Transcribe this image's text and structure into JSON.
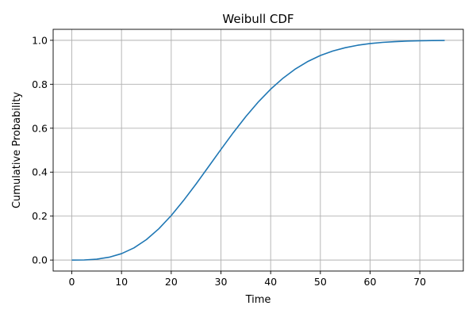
{
  "chart_data": {
    "type": "line",
    "title": "Weibull CDF",
    "xlabel": "Time",
    "ylabel": "Cumulative Probability",
    "xlim": [
      -3.75,
      78.75
    ],
    "ylim": [
      -0.05,
      1.05
    ],
    "xticks": [
      0,
      10,
      20,
      30,
      40,
      50,
      60,
      70
    ],
    "xtick_labels": [
      "0",
      "10",
      "20",
      "30",
      "40",
      "50",
      "60",
      "70"
    ],
    "yticks": [
      0.0,
      0.2,
      0.4,
      0.6,
      0.8,
      1.0
    ],
    "ytick_labels": [
      "0.0",
      "0.2",
      "0.4",
      "0.6",
      "0.8",
      "1.0"
    ],
    "grid": true,
    "series": [
      {
        "color": "#1f77b4",
        "x": [
          0,
          2.5,
          5,
          7.5,
          10,
          12.5,
          15,
          17.5,
          20,
          22.5,
          25,
          27.5,
          30,
          32.5,
          35,
          37.5,
          40,
          42.5,
          45,
          47.5,
          50,
          52.5,
          55,
          57.5,
          60,
          62.5,
          65,
          67.5,
          70,
          72.5,
          75
        ],
        "y": [
          0.0,
          0.0005,
          0.004,
          0.0128,
          0.0291,
          0.0552,
          0.0929,
          0.1423,
          0.2025,
          0.2717,
          0.3462,
          0.4247,
          0.5034,
          0.5804,
          0.6529,
          0.7191,
          0.7776,
          0.8279,
          0.87,
          0.904,
          0.9309,
          0.9512,
          0.9664,
          0.9775,
          0.9853,
          0.9905,
          0.994,
          0.9964,
          0.9978,
          0.9987,
          0.9992
        ]
      }
    ]
  }
}
